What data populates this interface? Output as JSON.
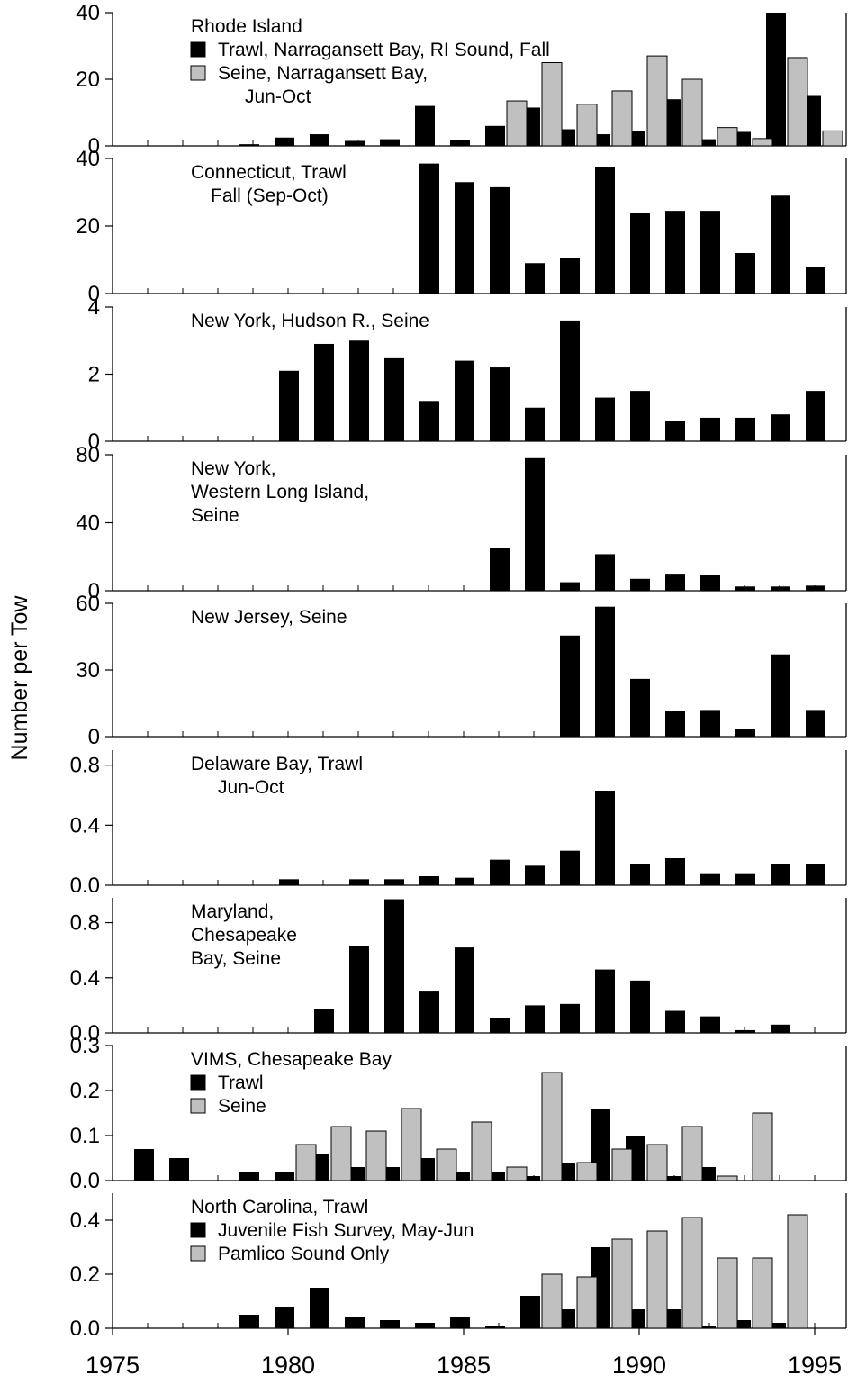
{
  "chart_data": {
    "type": "bar",
    "ylabel": "Number per Tow",
    "x_ticks": [
      "1975",
      "1980",
      "1985",
      "1990",
      "1995"
    ],
    "xlim": [
      1975,
      1995.5
    ],
    "panels": [
      {
        "title_lines": [
          "Rhode Island"
        ],
        "ylim": [
          0,
          40
        ],
        "yticks": [
          "0",
          "20",
          "40"
        ],
        "legend": true,
        "series": [
          {
            "name_lines": [
              "Trawl, Narragansett Bay, RI Sound, Fall"
            ],
            "color": "#000000",
            "x": [
              1979,
              1980,
              1981,
              1982,
              1983,
              1984,
              1985,
              1986,
              1987,
              1988,
              1989,
              1990,
              1991,
              1992,
              1993,
              1994,
              1995
            ],
            "values": [
              0.5,
              2.5,
              3.5,
              1.5,
              2,
              12,
              1.8,
              6,
              11.5,
              5,
              3.5,
              4.5,
              14,
              2,
              4.2,
              40,
              15
            ]
          },
          {
            "name_lines": [
              "Seine, Narragansett Bay,",
              "Jun-Oct"
            ],
            "color": "#c0c0c0",
            "x": [
              1986,
              1987,
              1988,
              1989,
              1990,
              1991,
              1992,
              1993,
              1994,
              1995
            ],
            "values": [
              13.5,
              25,
              12.5,
              16.5,
              27,
              20,
              5.5,
              2.2,
              26.5,
              4.5
            ]
          }
        ]
      },
      {
        "title_lines": [
          "Connecticut, Trawl",
          "Fall (Sep-Oct)"
        ],
        "ylim": [
          0,
          40
        ],
        "yticks": [
          "0",
          "20",
          "40"
        ],
        "legend": false,
        "series": [
          {
            "color": "#000000",
            "x": [
              1984,
              1985,
              1986,
              1987,
              1988,
              1989,
              1990,
              1991,
              1992,
              1993,
              1994,
              1995
            ],
            "values": [
              38.5,
              33,
              31.5,
              9,
              10.5,
              37.5,
              24,
              24.5,
              24.5,
              12,
              29,
              8
            ]
          }
        ]
      },
      {
        "title_lines": [
          "New York, Hudson R., Seine"
        ],
        "ylim": [
          0,
          4
        ],
        "yticks": [
          "0",
          "2",
          "4"
        ],
        "legend": false,
        "series": [
          {
            "color": "#000000",
            "x": [
              1980,
              1981,
              1982,
              1983,
              1984,
              1985,
              1986,
              1987,
              1988,
              1989,
              1990,
              1991,
              1992,
              1993,
              1994,
              1995
            ],
            "values": [
              2.1,
              2.9,
              3.0,
              2.5,
              1.2,
              2.4,
              2.2,
              1.0,
              3.6,
              1.3,
              1.5,
              0.6,
              0.7,
              0.7,
              0.8,
              1.5
            ]
          }
        ]
      },
      {
        "title_lines": [
          "New York,",
          "Western Long Island,",
          "Seine"
        ],
        "ylim": [
          0,
          80
        ],
        "yticks": [
          "0",
          "40",
          "80"
        ],
        "legend": false,
        "series": [
          {
            "color": "#000000",
            "x": [
              1986,
              1987,
              1988,
              1989,
              1990,
              1991,
              1992,
              1993,
              1994,
              1995
            ],
            "values": [
              25,
              78,
              5,
              21.5,
              7,
              10,
              9,
              2.5,
              2.5,
              3
            ]
          }
        ]
      },
      {
        "title_lines": [
          "New Jersey, Seine"
        ],
        "ylim": [
          0,
          60
        ],
        "yticks": [
          "0",
          "30",
          "60"
        ],
        "legend": false,
        "series": [
          {
            "color": "#000000",
            "x": [
              1988,
              1989,
              1990,
              1991,
              1992,
              1993,
              1994,
              1995
            ],
            "values": [
              45.5,
              58.5,
              26,
              11.5,
              12,
              3.5,
              37,
              12
            ]
          }
        ]
      },
      {
        "title_lines": [
          "Delaware Bay, Trawl",
          "Jun-Oct"
        ],
        "ylim": [
          0,
          0.9
        ],
        "yticks": [
          "0.0",
          "0.4",
          "0.8"
        ],
        "legend": false,
        "series": [
          {
            "color": "#000000",
            "x": [
              1980,
              1982,
              1983,
              1984,
              1985,
              1986,
              1987,
              1988,
              1989,
              1990,
              1991,
              1992,
              1993,
              1994,
              1995
            ],
            "values": [
              0.04,
              0.04,
              0.04,
              0.06,
              0.05,
              0.17,
              0.13,
              0.23,
              0.63,
              0.14,
              0.18,
              0.08,
              0.08,
              0.14,
              0.14
            ]
          }
        ]
      },
      {
        "title_lines": [
          "Maryland,",
          "Chesapeake",
          "Bay, Seine"
        ],
        "ylim": [
          0,
          0.98
        ],
        "yticks": [
          "0.0",
          "0.4",
          "0.8"
        ],
        "legend": false,
        "series": [
          {
            "color": "#000000",
            "x": [
              1981,
              1982,
              1983,
              1984,
              1985,
              1986,
              1987,
              1988,
              1989,
              1990,
              1991,
              1992,
              1993,
              1994
            ],
            "values": [
              0.17,
              0.63,
              0.97,
              0.3,
              0.62,
              0.11,
              0.2,
              0.21,
              0.46,
              0.38,
              0.16,
              0.12,
              0.02,
              0.06
            ]
          }
        ]
      },
      {
        "title_lines": [
          "VIMS, Chesapeake Bay"
        ],
        "ylim": [
          0,
          0.3
        ],
        "yticks": [
          "0.0",
          "0.1",
          "0.2",
          "0.3"
        ],
        "legend": true,
        "series": [
          {
            "name_lines": [
              "Trawl"
            ],
            "color": "#000000",
            "x": [
              1976,
              1977,
              1979,
              1980,
              1981,
              1982,
              1983,
              1984,
              1985,
              1986,
              1987,
              1988,
              1989,
              1990,
              1991,
              1992
            ],
            "values": [
              0.07,
              0.05,
              0.02,
              0.02,
              0.06,
              0.03,
              0.03,
              0.05,
              0.02,
              0.02,
              0.01,
              0.04,
              0.16,
              0.1,
              0.01,
              0.03
            ]
          },
          {
            "name_lines": [
              "Seine"
            ],
            "color": "#c0c0c0",
            "x": [
              1980,
              1981,
              1982,
              1983,
              1984,
              1985,
              1986,
              1987,
              1988,
              1989,
              1990,
              1991,
              1992,
              1993
            ],
            "values": [
              0.08,
              0.12,
              0.11,
              0.16,
              0.07,
              0.13,
              0.03,
              0.24,
              0.04,
              0.07,
              0.08,
              0.12,
              0.01,
              0.15
            ]
          }
        ]
      },
      {
        "title_lines": [
          "North Carolina, Trawl"
        ],
        "ylim": [
          0,
          0.5
        ],
        "yticks": [
          "0.0",
          "0.2",
          "0.4"
        ],
        "legend": true,
        "series": [
          {
            "name_lines": [
              "Juvenile Fish Survey, May-Jun"
            ],
            "color": "#000000",
            "x": [
              1979,
              1980,
              1981,
              1982,
              1983,
              1984,
              1985,
              1986,
              1987,
              1988,
              1989,
              1990,
              1991,
              1992,
              1993,
              1994
            ],
            "values": [
              0.05,
              0.08,
              0.15,
              0.04,
              0.03,
              0.02,
              0.04,
              0.01,
              0.12,
              0.07,
              0.3,
              0.07,
              0.07,
              0.01,
              0.03,
              0.02
            ]
          },
          {
            "name_lines": [
              "Pamlico Sound Only"
            ],
            "color": "#c0c0c0",
            "x": [
              1987,
              1988,
              1989,
              1990,
              1991,
              1992,
              1993,
              1994
            ],
            "values": [
              0.2,
              0.19,
              0.33,
              0.36,
              0.41,
              0.26,
              0.26,
              0.42
            ]
          }
        ]
      }
    ]
  }
}
